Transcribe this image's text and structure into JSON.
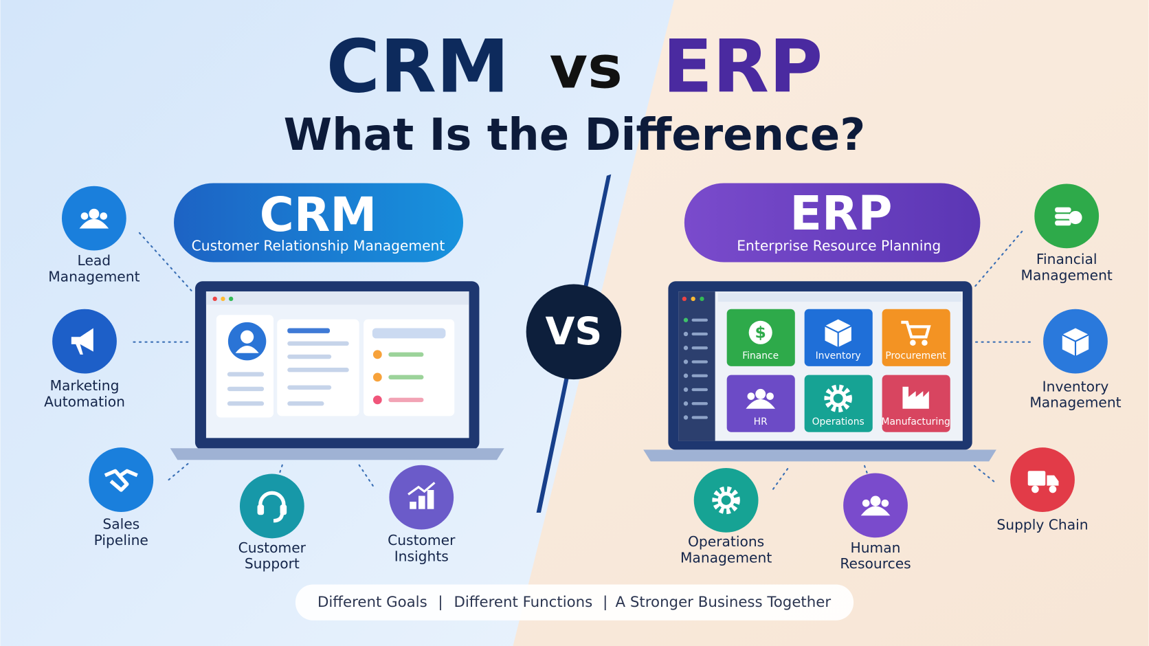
{
  "title": {
    "crm": "CRM",
    "vs": "vs",
    "erp": "ERP"
  },
  "subtitle": "What Is the Difference?",
  "crm": {
    "title": "CRM",
    "subtitle": "Customer Relationship Management",
    "features": [
      {
        "lines": [
          "Lead",
          "Management"
        ]
      },
      {
        "lines": [
          "Marketing",
          "Automation"
        ]
      },
      {
        "lines": [
          "Sales",
          "Pipeline"
        ]
      },
      {
        "lines": [
          "Customer",
          "Support"
        ]
      },
      {
        "lines": [
          "Customer",
          "Insights"
        ]
      }
    ]
  },
  "vs_badge": "VS",
  "erp": {
    "title": "ERP",
    "subtitle": "Enterprise Resource Planning",
    "modules": [
      "Finance",
      "Inventory",
      "Procurement",
      "HR",
      "Operations",
      "Manufacturing"
    ],
    "features": [
      {
        "lines": [
          "Financial",
          "Management"
        ]
      },
      {
        "lines": [
          "Inventory",
          "Management"
        ]
      },
      {
        "lines": [
          "Supply Chain"
        ]
      },
      {
        "lines": [
          "Operations",
          "Management"
        ]
      },
      {
        "lines": [
          "Human",
          "Resources"
        ]
      }
    ]
  },
  "footer": {
    "items": [
      "Different Goals",
      "Different Functions",
      "A Stronger Business Together"
    ],
    "separator": "|"
  }
}
